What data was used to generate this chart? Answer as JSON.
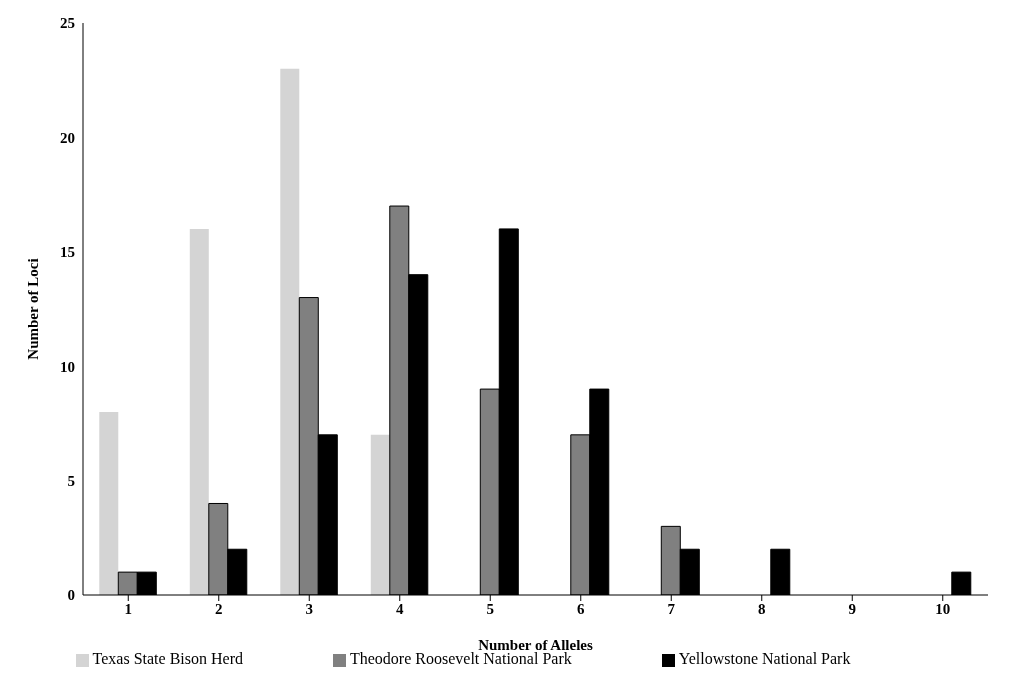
{
  "chart_data": {
    "type": "bar",
    "xlabel": "Number of Alleles",
    "ylabel": "Number of Loci",
    "categories": [
      "1",
      "2",
      "3",
      "4",
      "5",
      "6",
      "7",
      "8",
      "9",
      "10"
    ],
    "series": [
      {
        "name": "Texas State Bison Herd",
        "color": "#d4d4d4",
        "values": [
          8,
          16,
          23,
          7,
          0,
          0,
          0,
          0,
          0,
          0
        ]
      },
      {
        "name": "Theodore Roosevelt National Park",
        "color": "#808080",
        "values": [
          1,
          4,
          13,
          17,
          9,
          7,
          3,
          0,
          0,
          0
        ]
      },
      {
        "name": "Yellowstone National Park",
        "color": "#000000",
        "values": [
          1,
          2,
          7,
          14,
          16,
          9,
          2,
          2,
          0,
          1
        ]
      }
    ],
    "ylim": [
      0,
      25
    ],
    "yticks": [
      0,
      5,
      10,
      15,
      20,
      25
    ],
    "grid": false,
    "legend": "bottom"
  }
}
